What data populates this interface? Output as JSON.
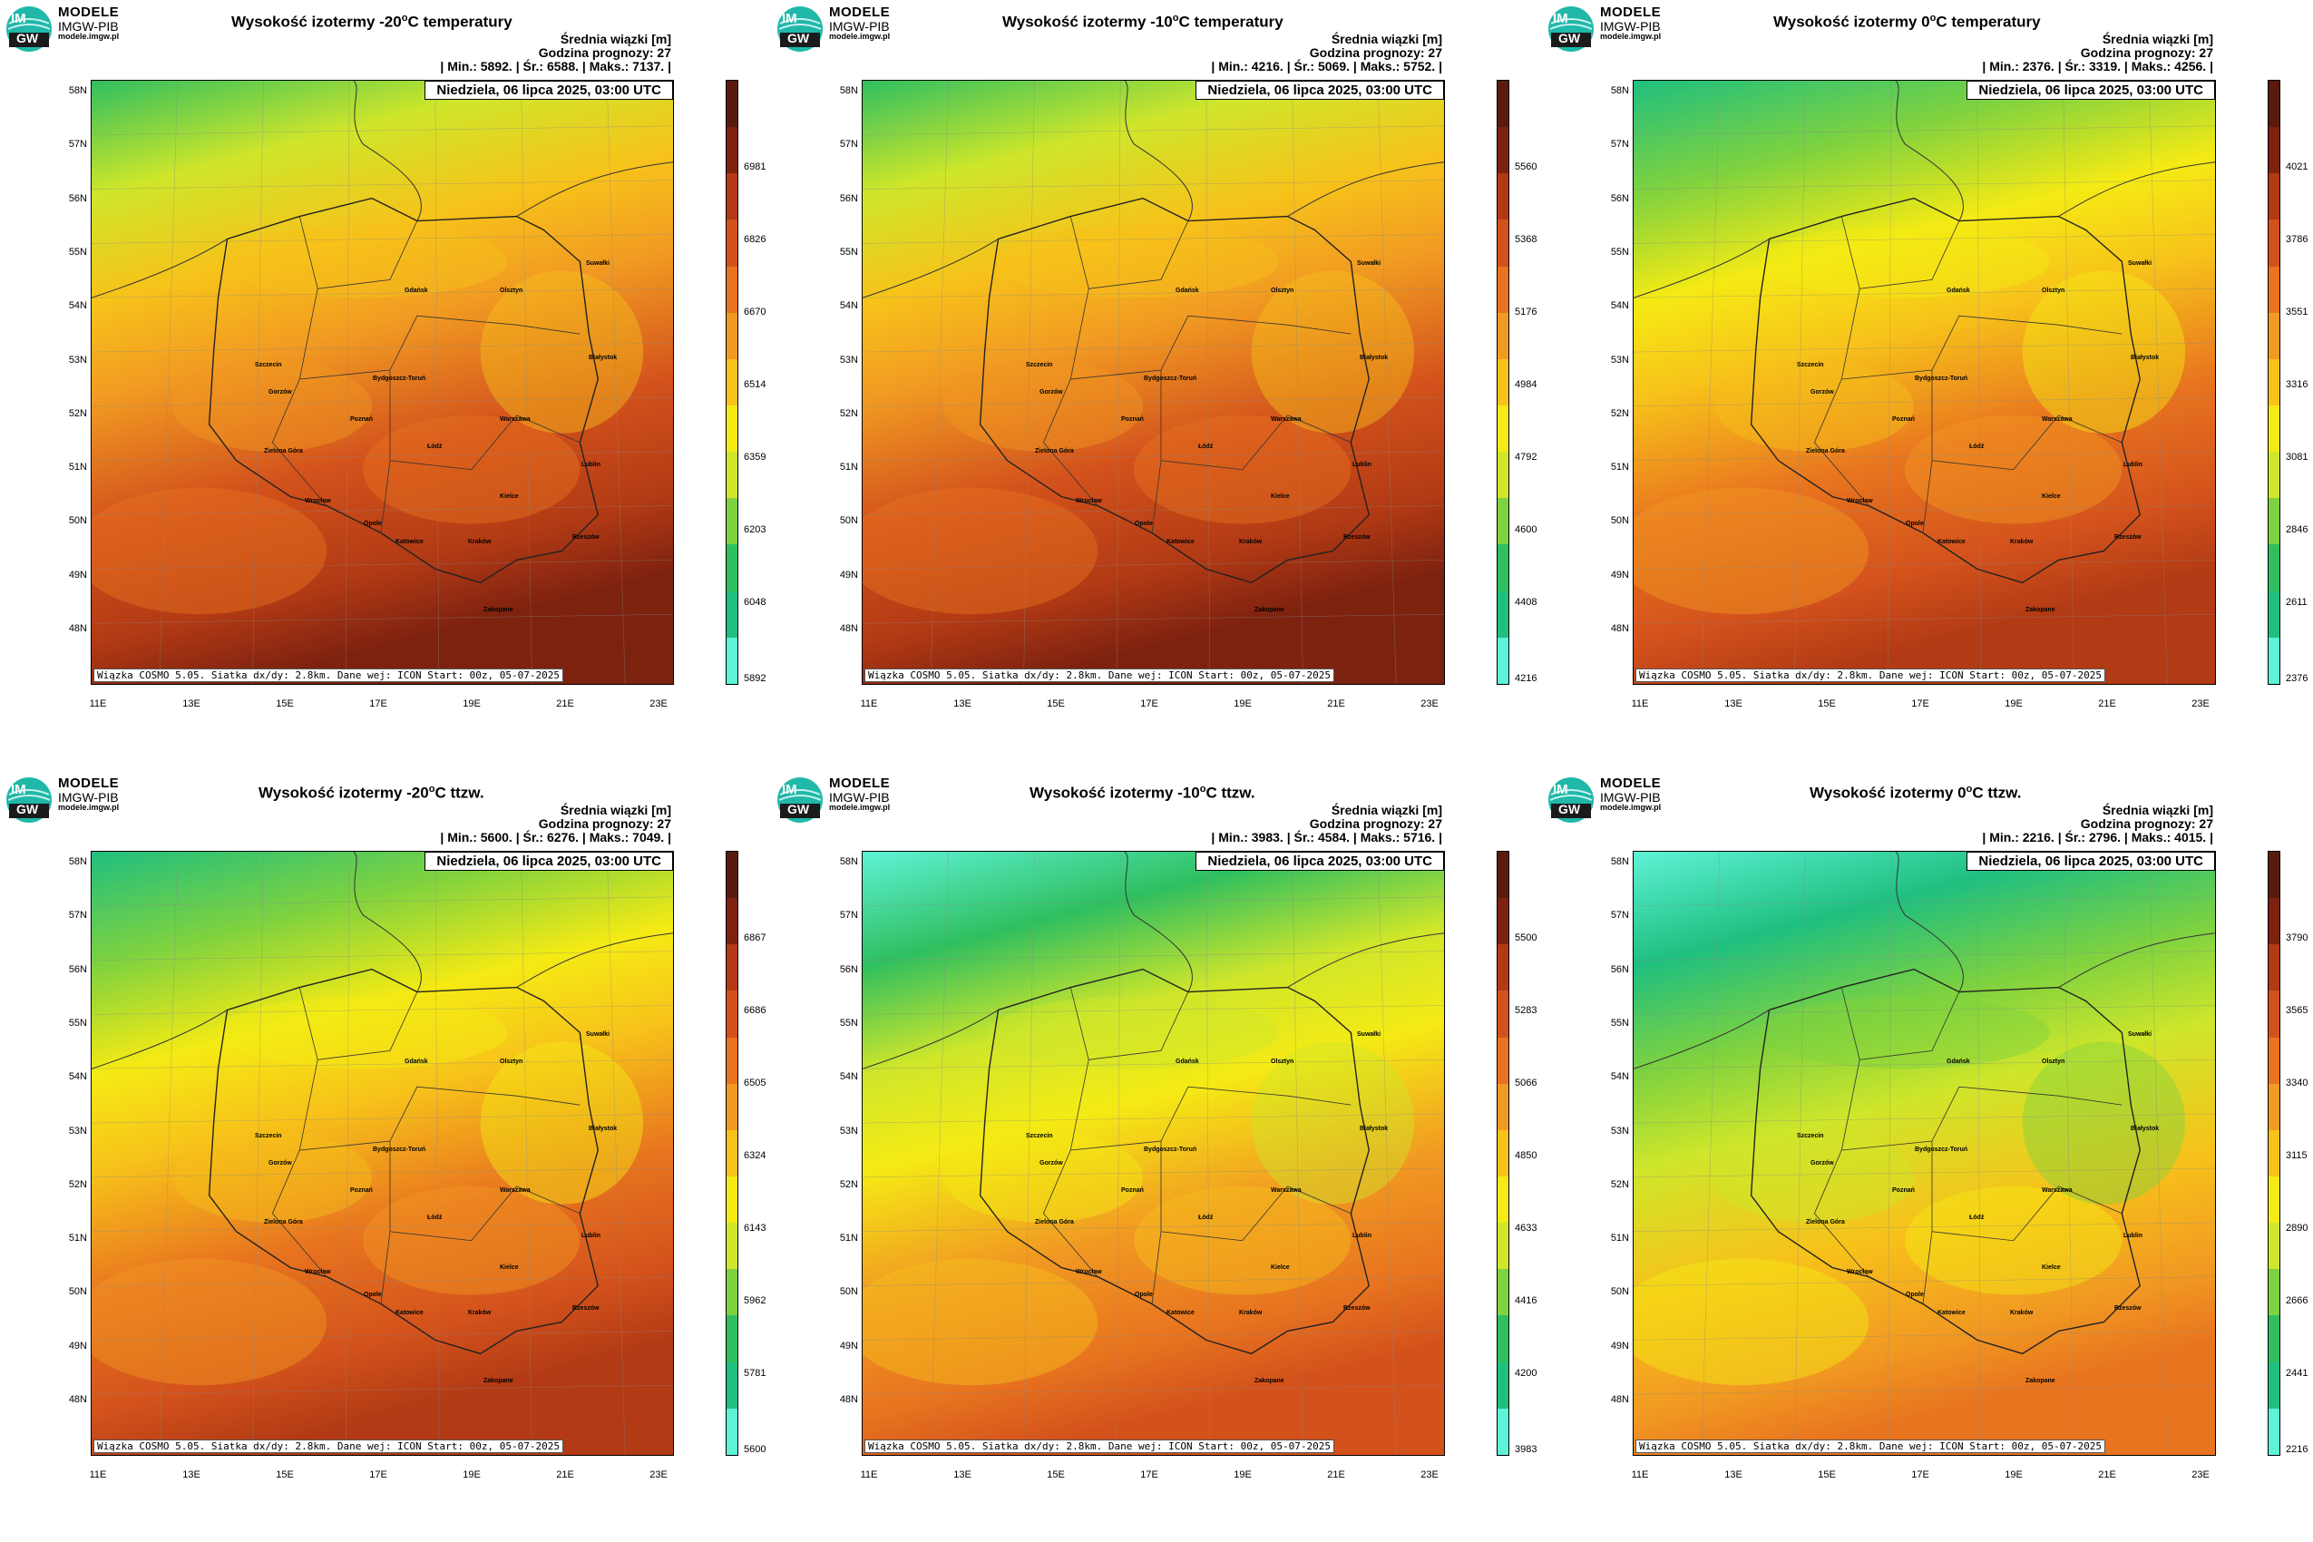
{
  "logo": {
    "line1": "MODELE",
    "line2": "IMGW-PIB",
    "line3": "modele.imgw.pl",
    "badge_top": "IM",
    "badge_bottom": "GW"
  },
  "common": {
    "beam_label": "Średnia wiązki [m]",
    "forecast_hour": "Godzina prognozy: 27",
    "date": "Niedziela, 06 lipca 2025, 03:00 UTC",
    "footer": "Wiązka COSMO 5.05. Siatka dx/dy: 2.8km. Dane wej: ICON Start: 00z, 05-07-2025",
    "lat_labels": [
      "58N",
      "57N",
      "56N",
      "55N",
      "54N",
      "53N",
      "52N",
      "51N",
      "50N",
      "49N",
      "48N"
    ],
    "lon_labels": [
      "11E",
      "13E",
      "15E",
      "17E",
      "19E",
      "21E",
      "23E"
    ],
    "cities": [
      "Gdańsk",
      "Olsztyn",
      "Suwałki",
      "Białystok",
      "Szczecin",
      "Bydgoszcz-Toruń",
      "Gorzów",
      "Poznań",
      "Warszawa",
      "Łódź",
      "Zielona Góra",
      "Lublin",
      "Wrocław",
      "Kielce",
      "Opole",
      "Rzeszów",
      "Katowice",
      "Kraków",
      "Zakopane"
    ]
  },
  "panels": [
    {
      "title_pre": "Wysokość izotermy ",
      "title_value": "-20",
      "title_unit": "o",
      "title_post": "C temperatury",
      "stats": "| Min.:  5892. | Śr.:  6588. | Maks.:  7137. |",
      "ticks": [
        "6981",
        "6826",
        "6670",
        "6514",
        "6359",
        "6203",
        "6048",
        "5892"
      ],
      "mean_level": 0.62
    },
    {
      "title_pre": "Wysokość izotermy ",
      "title_value": "-10",
      "title_unit": "o",
      "title_post": "C temperatury",
      "stats": "| Min.:  4216. | Śr.:  5069. | Maks.:  5752. |",
      "ticks": [
        "5560",
        "5368",
        "5176",
        "4984",
        "4792",
        "4600",
        "4408",
        "4216"
      ],
      "mean_level": 0.58
    },
    {
      "title_pre": "Wysokość izotermy ",
      "title_value": "0",
      "title_unit": "o",
      "title_post": "C temperatury",
      "stats": "| Min.:  2376. | Śr.:  3319. | Maks.:  4256. |",
      "ticks": [
        "4021",
        "3786",
        "3551",
        "3316",
        "3081",
        "2846",
        "2611",
        "2376"
      ],
      "mean_level": 0.52
    },
    {
      "title_pre": "Wysokość izotermy ",
      "title_value": "-20",
      "title_unit": "o",
      "title_post": "C ttzw.",
      "stats": "| Min.:  5600. | Śr.:  6276. | Maks.:  7049. |",
      "ticks": [
        "6867",
        "6686",
        "6505",
        "6324",
        "6143",
        "5962",
        "5781",
        "5600"
      ],
      "mean_level": 0.5
    },
    {
      "title_pre": "Wysokość izotermy ",
      "title_value": "-10",
      "title_unit": "o",
      "title_post": "C ttzw.",
      "stats": "| Min.:  3983. | Śr.:  4584. | Maks.:  5716. |",
      "ticks": [
        "5500",
        "5283",
        "5066",
        "4850",
        "4633",
        "4416",
        "4200",
        "3983"
      ],
      "mean_level": 0.38
    },
    {
      "title_pre": "Wysokość izotermy ",
      "title_value": "0",
      "title_unit": "o",
      "title_post": "C ttzw.",
      "stats": "| Min.:  2216. | Śr.:  2796. | Maks.:  4015. |",
      "ticks": [
        "3790",
        "3565",
        "3340",
        "3115",
        "2890",
        "2666",
        "2441",
        "2216"
      ],
      "mean_level": 0.3
    }
  ],
  "colors": {
    "scale": [
      "#5ef2d6",
      "#1fbf7f",
      "#2fbf5f",
      "#7fd23f",
      "#cfe62a",
      "#f5ea14",
      "#f7c21a",
      "#f19a22",
      "#e8741f",
      "#d3521c",
      "#b23a14",
      "#7e2210",
      "#5a1a0c"
    ]
  }
}
